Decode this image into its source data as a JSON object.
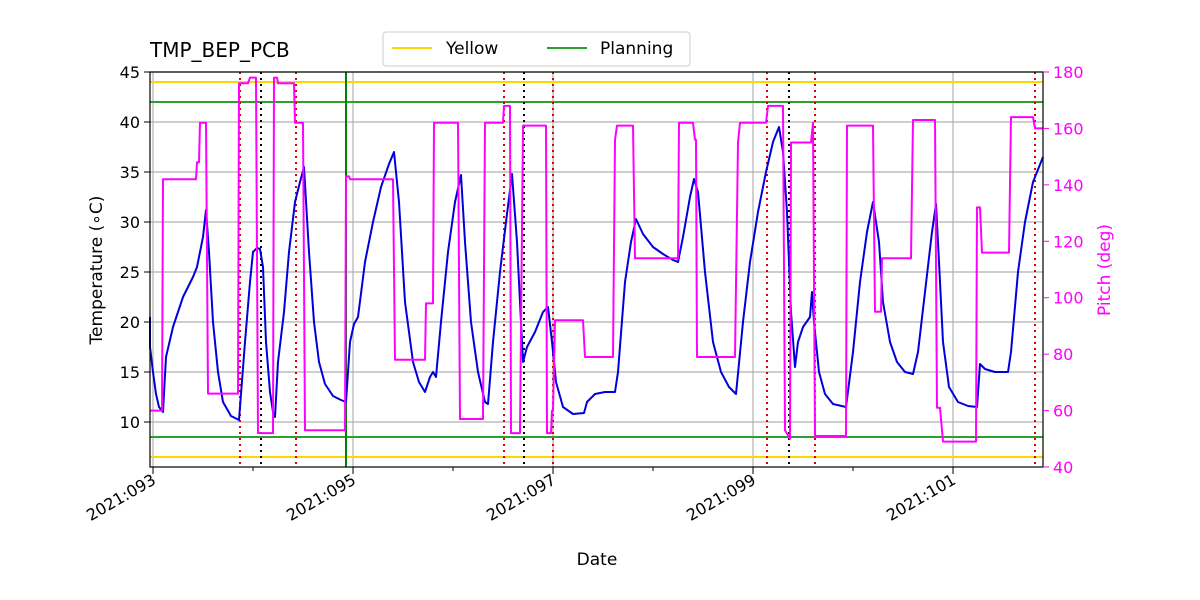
{
  "chart_data": {
    "type": "line",
    "title": "TMP_BEP_PCB",
    "xlabel": "Date",
    "ylabel": "Temperature (∘C)",
    "ylabel2": "Pitch (deg)",
    "xlim": [
      92.97,
      101.9
    ],
    "ylim": [
      5.5,
      45
    ],
    "ylim2": [
      40,
      180
    ],
    "yticks": [
      10,
      15,
      20,
      25,
      30,
      35,
      40,
      45
    ],
    "yticks2": [
      40,
      60,
      80,
      100,
      120,
      140,
      160,
      180
    ],
    "xticks": [
      {
        "x": 93,
        "label": "2021:093"
      },
      {
        "x": 95,
        "label": "2021:095"
      },
      {
        "x": 97,
        "label": "2021:097"
      },
      {
        "x": 99,
        "label": "2021:099"
      },
      {
        "x": 101,
        "label": "2021:101"
      }
    ],
    "x_minor": [
      94,
      96,
      98,
      100
    ],
    "grid": true,
    "legend_placement": "top-center",
    "legend": [
      {
        "name": "Yellow",
        "color": "#FFD700"
      },
      {
        "name": "Planning",
        "color": "#2CA02C"
      }
    ],
    "limits": {
      "yellow": [
        6.5,
        44.0
      ],
      "planning": [
        8.5,
        42.0
      ]
    },
    "colors": {
      "temperature": "#0000DD",
      "pitch": "#FF00FF",
      "yellow": "#FFD700",
      "planning": "#2CA02C",
      "red_markers": "#DD0000",
      "black_markers": "#000000",
      "green_marker": "#008000"
    },
    "red_markers": [
      93.87,
      94.43,
      96.51,
      97.0,
      99.14,
      99.62,
      101.82
    ],
    "black_markers": [
      94.08,
      96.71,
      99.36
    ],
    "green_markers": [
      94.93
    ],
    "series": [
      {
        "name": "Temperature",
        "axis": "left",
        "points": [
          [
            92.95,
            20.5
          ],
          [
            92.97,
            17.5
          ],
          [
            93.0,
            15.0
          ],
          [
            93.03,
            12.8
          ],
          [
            93.06,
            11.5
          ],
          [
            93.1,
            11.0
          ],
          [
            93.13,
            16.5
          ],
          [
            93.2,
            19.5
          ],
          [
            93.3,
            22.5
          ],
          [
            93.4,
            24.5
          ],
          [
            93.44,
            25.5
          ],
          [
            93.47,
            27.0
          ],
          [
            93.5,
            28.5
          ],
          [
            93.53,
            31.2
          ],
          [
            93.56,
            27.0
          ],
          [
            93.6,
            20.0
          ],
          [
            93.65,
            15.0
          ],
          [
            93.7,
            12.0
          ],
          [
            93.78,
            10.6
          ],
          [
            93.86,
            10.2
          ],
          [
            93.92,
            18.0
          ],
          [
            93.97,
            24.0
          ],
          [
            94.0,
            27.0
          ],
          [
            94.04,
            27.4
          ],
          [
            94.07,
            27.3
          ],
          [
            94.1,
            25.5
          ],
          [
            94.13,
            18.0
          ],
          [
            94.17,
            13.0
          ],
          [
            94.2,
            11.0
          ],
          [
            94.22,
            10.5
          ],
          [
            94.25,
            16.0
          ],
          [
            94.28,
            18.5
          ],
          [
            94.31,
            21.0
          ],
          [
            94.36,
            27.0
          ],
          [
            94.42,
            32.0
          ],
          [
            94.47,
            34.0
          ],
          [
            94.51,
            35.5
          ],
          [
            94.56,
            27.0
          ],
          [
            94.61,
            20.0
          ],
          [
            94.66,
            16.0
          ],
          [
            94.72,
            13.8
          ],
          [
            94.8,
            12.6
          ],
          [
            94.88,
            12.2
          ],
          [
            94.93,
            12.0
          ],
          [
            94.97,
            18.0
          ],
          [
            95.01,
            19.8
          ],
          [
            95.05,
            20.5
          ],
          [
            95.12,
            26.0
          ],
          [
            95.2,
            30.0
          ],
          [
            95.28,
            33.5
          ],
          [
            95.36,
            35.8
          ],
          [
            95.41,
            37.0
          ],
          [
            95.46,
            32.0
          ],
          [
            95.52,
            22.0
          ],
          [
            95.6,
            16.0
          ],
          [
            95.66,
            14.0
          ],
          [
            95.72,
            13.0
          ],
          [
            95.77,
            14.5
          ],
          [
            95.8,
            15.0
          ],
          [
            95.83,
            14.5
          ],
          [
            95.88,
            20.0
          ],
          [
            95.95,
            27.0
          ],
          [
            96.02,
            32.0
          ],
          [
            96.08,
            34.7
          ],
          [
            96.12,
            28.0
          ],
          [
            96.18,
            20.0
          ],
          [
            96.25,
            15.0
          ],
          [
            96.32,
            12.0
          ],
          [
            96.35,
            11.8
          ],
          [
            96.4,
            18.0
          ],
          [
            96.47,
            25.0
          ],
          [
            96.53,
            30.0
          ],
          [
            96.59,
            34.8
          ],
          [
            96.64,
            28.0
          ],
          [
            96.7,
            16.0
          ],
          [
            96.74,
            17.5
          ],
          [
            96.82,
            19.0
          ],
          [
            96.9,
            21.0
          ],
          [
            96.95,
            21.5
          ],
          [
            96.99,
            18.0
          ],
          [
            97.03,
            14.0
          ],
          [
            97.1,
            11.5
          ],
          [
            97.2,
            10.8
          ],
          [
            97.31,
            10.9
          ],
          [
            97.34,
            12.0
          ],
          [
            97.42,
            12.8
          ],
          [
            97.52,
            13.0
          ],
          [
            97.62,
            13.0
          ],
          [
            97.65,
            15.0
          ],
          [
            97.72,
            24.0
          ],
          [
            97.78,
            28.0
          ],
          [
            97.83,
            30.3
          ],
          [
            97.9,
            28.8
          ],
          [
            98.0,
            27.5
          ],
          [
            98.1,
            26.8
          ],
          [
            98.2,
            26.2
          ],
          [
            98.25,
            26.0
          ],
          [
            98.3,
            28.5
          ],
          [
            98.37,
            32.5
          ],
          [
            98.41,
            34.3
          ],
          [
            98.45,
            33.0
          ],
          [
            98.52,
            25.0
          ],
          [
            98.6,
            18.0
          ],
          [
            98.68,
            15.0
          ],
          [
            98.76,
            13.5
          ],
          [
            98.83,
            12.8
          ],
          [
            98.9,
            20.0
          ],
          [
            98.97,
            26.0
          ],
          [
            99.05,
            31.0
          ],
          [
            99.13,
            35.0
          ],
          [
            99.2,
            38.0
          ],
          [
            99.26,
            39.5
          ],
          [
            99.3,
            37.0
          ],
          [
            99.34,
            31.0
          ],
          [
            99.38,
            21.0
          ],
          [
            99.42,
            15.5
          ],
          [
            99.45,
            18.0
          ],
          [
            99.5,
            19.5
          ],
          [
            99.57,
            20.5
          ],
          [
            99.59,
            23.0
          ],
          [
            99.61,
            20.0
          ],
          [
            99.66,
            15.0
          ],
          [
            99.72,
            12.8
          ],
          [
            99.8,
            11.8
          ],
          [
            99.93,
            11.5
          ],
          [
            100.0,
            17.0
          ],
          [
            100.07,
            24.0
          ],
          [
            100.14,
            29.0
          ],
          [
            100.2,
            32.0
          ],
          [
            100.26,
            28.0
          ],
          [
            100.3,
            22.0
          ],
          [
            100.37,
            18.0
          ],
          [
            100.44,
            16.0
          ],
          [
            100.52,
            15.0
          ],
          [
            100.6,
            14.8
          ],
          [
            100.65,
            17.0
          ],
          [
            100.72,
            23.0
          ],
          [
            100.79,
            29.0
          ],
          [
            100.83,
            31.8
          ],
          [
            100.86,
            26.0
          ],
          [
            100.9,
            18.0
          ],
          [
            100.96,
            13.5
          ],
          [
            101.05,
            12.0
          ],
          [
            101.15,
            11.6
          ],
          [
            101.24,
            11.5
          ],
          [
            101.27,
            15.8
          ],
          [
            101.32,
            15.3
          ],
          [
            101.42,
            15.0
          ],
          [
            101.55,
            15.0
          ],
          [
            101.58,
            17.0
          ],
          [
            101.65,
            25.0
          ],
          [
            101.72,
            30.0
          ],
          [
            101.8,
            34.0
          ],
          [
            101.9,
            36.5
          ]
        ]
      },
      {
        "name": "Pitch",
        "axis": "right",
        "points": [
          [
            92.95,
            60
          ],
          [
            93.07,
            60
          ],
          [
            93.09,
            60
          ],
          [
            93.1,
            142
          ],
          [
            93.43,
            142
          ],
          [
            93.44,
            148
          ],
          [
            93.46,
            148
          ],
          [
            93.47,
            162
          ],
          [
            93.53,
            162
          ],
          [
            93.55,
            66
          ],
          [
            93.85,
            66
          ],
          [
            93.86,
            176
          ],
          [
            93.95,
            176
          ],
          [
            93.97,
            178
          ],
          [
            94.03,
            178
          ],
          [
            94.05,
            52
          ],
          [
            94.2,
            52
          ],
          [
            94.21,
            178
          ],
          [
            94.24,
            178
          ],
          [
            94.25,
            176
          ],
          [
            94.41,
            176
          ],
          [
            94.42,
            162
          ],
          [
            94.5,
            162
          ],
          [
            94.52,
            53
          ],
          [
            94.92,
            53
          ],
          [
            94.93,
            143
          ],
          [
            94.96,
            143
          ],
          [
            94.97,
            142
          ],
          [
            95.4,
            142
          ],
          [
            95.42,
            78
          ],
          [
            95.72,
            78
          ],
          [
            95.73,
            98
          ],
          [
            95.8,
            98
          ],
          [
            95.81,
            162
          ],
          [
            96.05,
            162
          ],
          [
            96.07,
            57
          ],
          [
            96.3,
            57
          ],
          [
            96.32,
            162
          ],
          [
            96.5,
            162
          ],
          [
            96.51,
            168
          ],
          [
            96.57,
            168
          ],
          [
            96.58,
            52
          ],
          [
            96.67,
            52
          ],
          [
            96.7,
            161
          ],
          [
            96.93,
            161
          ],
          [
            96.94,
            52
          ],
          [
            96.98,
            52
          ],
          [
            96.99,
            60
          ],
          [
            97.0,
            60
          ],
          [
            97.02,
            92
          ],
          [
            97.3,
            92
          ],
          [
            97.32,
            79
          ],
          [
            97.6,
            79
          ],
          [
            97.62,
            156
          ],
          [
            97.64,
            161
          ],
          [
            97.8,
            161
          ],
          [
            97.82,
            114
          ],
          [
            98.25,
            114
          ],
          [
            98.26,
            162
          ],
          [
            98.4,
            162
          ],
          [
            98.42,
            156
          ],
          [
            98.43,
            156
          ],
          [
            98.44,
            79
          ],
          [
            98.82,
            79
          ],
          [
            98.85,
            155
          ],
          [
            98.87,
            162
          ],
          [
            99.13,
            162
          ],
          [
            99.15,
            168
          ],
          [
            99.3,
            168
          ],
          [
            99.32,
            53
          ],
          [
            99.37,
            50
          ],
          [
            99.38,
            155
          ],
          [
            99.58,
            155
          ],
          [
            99.6,
            162
          ],
          [
            99.62,
            51
          ],
          [
            99.93,
            51
          ],
          [
            99.94,
            161
          ],
          [
            100.2,
            161
          ],
          [
            100.22,
            95
          ],
          [
            100.28,
            95
          ],
          [
            100.29,
            114
          ],
          [
            100.58,
            114
          ],
          [
            100.6,
            163
          ],
          [
            100.82,
            163
          ],
          [
            100.84,
            61
          ],
          [
            100.87,
            61
          ],
          [
            100.9,
            49
          ],
          [
            101.2,
            49
          ],
          [
            101.23,
            49
          ],
          [
            101.24,
            132
          ],
          [
            101.27,
            132
          ],
          [
            101.29,
            116
          ],
          [
            101.56,
            116
          ],
          [
            101.58,
            164
          ],
          [
            101.78,
            164
          ],
          [
            101.8,
            164
          ],
          [
            101.82,
            160
          ],
          [
            101.9,
            160
          ]
        ]
      }
    ]
  }
}
